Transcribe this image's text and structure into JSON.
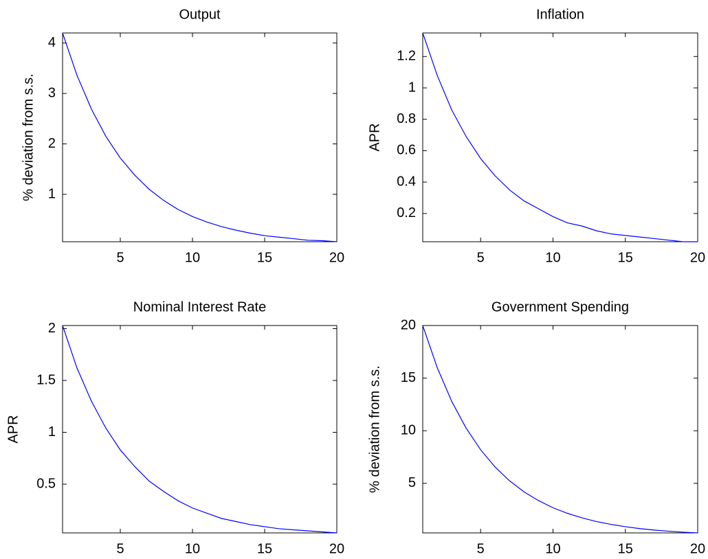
{
  "chart_data": [
    {
      "type": "line",
      "title": "Output",
      "y_label": "% deviation from s.s.",
      "x": [
        1,
        2,
        3,
        4,
        5,
        6,
        7,
        8,
        9,
        10,
        11,
        12,
        13,
        14,
        15,
        16,
        17,
        18,
        19,
        20
      ],
      "values": [
        4.2,
        3.36,
        2.69,
        2.15,
        1.72,
        1.38,
        1.1,
        0.88,
        0.7,
        0.56,
        0.45,
        0.36,
        0.29,
        0.23,
        0.18,
        0.15,
        0.12,
        0.09,
        0.08,
        0.06
      ],
      "color": "#0000ff",
      "xlim": [
        1,
        20
      ],
      "xticks": [
        5,
        10,
        15,
        20
      ],
      "ylim": [
        0.06,
        4.2
      ],
      "yticks": [
        1,
        2,
        3,
        4
      ]
    },
    {
      "type": "line",
      "title": "Inflation",
      "y_label": "APR",
      "x": [
        1,
        2,
        3,
        4,
        5,
        6,
        7,
        8,
        9,
        10,
        11,
        12,
        13,
        14,
        15,
        16,
        17,
        18,
        19,
        20
      ],
      "values": [
        1.35,
        1.08,
        0.86,
        0.69,
        0.55,
        0.44,
        0.35,
        0.28,
        0.23,
        0.18,
        0.14,
        0.12,
        0.09,
        0.07,
        0.06,
        0.05,
        0.04,
        0.03,
        0.02,
        0.02
      ],
      "color": "#0000ff",
      "xlim": [
        1,
        20
      ],
      "xticks": [
        5,
        10,
        15,
        20
      ],
      "ylim": [
        0.02,
        1.35
      ],
      "yticks": [
        0.2,
        0.4,
        0.6,
        0.8,
        1,
        1.2
      ]
    },
    {
      "type": "line",
      "title": "Nominal Interest Rate",
      "y_label": "APR",
      "x": [
        1,
        2,
        3,
        4,
        5,
        6,
        7,
        8,
        9,
        10,
        11,
        12,
        13,
        14,
        15,
        16,
        17,
        18,
        19,
        20
      ],
      "values": [
        2.03,
        1.62,
        1.3,
        1.04,
        0.83,
        0.67,
        0.53,
        0.43,
        0.34,
        0.27,
        0.22,
        0.17,
        0.14,
        0.11,
        0.09,
        0.07,
        0.06,
        0.05,
        0.04,
        0.03
      ],
      "color": "#0000ff",
      "xlim": [
        1,
        20
      ],
      "xticks": [
        5,
        10,
        15,
        20
      ],
      "ylim": [
        0.03,
        2.03
      ],
      "yticks": [
        0.5,
        1,
        1.5,
        2
      ]
    },
    {
      "type": "line",
      "title": "Government Spending",
      "y_label": "% deviation from s.s.",
      "x": [
        1,
        2,
        3,
        4,
        5,
        6,
        7,
        8,
        9,
        10,
        11,
        12,
        13,
        14,
        15,
        16,
        17,
        18,
        19,
        20
      ],
      "values": [
        20,
        16,
        12.8,
        10.24,
        8.19,
        6.55,
        5.24,
        4.19,
        3.36,
        2.68,
        2.15,
        1.72,
        1.37,
        1.1,
        0.88,
        0.7,
        0.56,
        0.45,
        0.36,
        0.29
      ],
      "color": "#0000ff",
      "xlim": [
        1,
        20
      ],
      "xticks": [
        5,
        10,
        15,
        20
      ],
      "ylim": [
        0.29,
        20
      ],
      "yticks": [
        5,
        10,
        15,
        20
      ]
    }
  ]
}
